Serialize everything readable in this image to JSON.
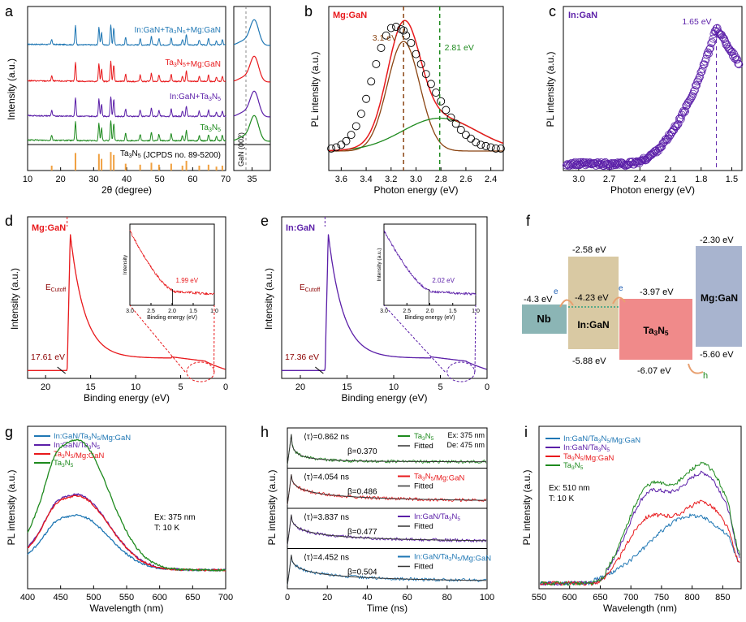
{
  "colors": {
    "blue": "#1f77b4",
    "red": "#e8191c",
    "purple": "#5b1fa8",
    "green": "#1e8a1e",
    "brown": "#8b4513",
    "orange": "#f0a040",
    "darkred": "#8b0000",
    "nb": "#8bb5b5",
    "ingan": "#d9c9a3",
    "ta3n5": "#f08a8a",
    "mggan": "#a8b4cf",
    "arrow": "#e8a070"
  },
  "panel_letters": [
    "a",
    "b",
    "c",
    "d",
    "e",
    "f",
    "g",
    "h",
    "i"
  ],
  "chart_data": [
    {
      "panel": "a",
      "type": "line",
      "xlabel": "2θ (degree)",
      "ylabel": "Intensity (a.u.)",
      "xlim": [
        10,
        70
      ],
      "xticks": [
        10,
        20,
        30,
        40,
        50,
        60,
        70
      ],
      "series": [
        {
          "name": "In:GaN+Ta3N5+Mg:GaN",
          "color": "blue"
        },
        {
          "name": "Ta3N5+Mg:GaN",
          "color": "red"
        },
        {
          "name": "In:GaN+Ta3N5",
          "color": "purple"
        },
        {
          "name": "Ta3N5",
          "color": "green"
        }
      ],
      "reference": {
        "name": "Ta3N5 (JCPDS no. 89-5200)",
        "peaks": [
          17.3,
          24.5,
          31.6,
          32.4,
          35.2,
          36.1,
          39.7,
          44.1,
          47.5,
          49.8,
          53.5,
          56.9,
          58.1,
          62.0,
          64.8,
          67.2,
          69.0
        ],
        "heights": [
          0.25,
          0.9,
          0.85,
          0.6,
          0.95,
          0.8,
          0.35,
          0.3,
          0.4,
          0.3,
          0.35,
          0.25,
          0.5,
          0.25,
          0.3,
          0.2,
          0.25
        ]
      }
    },
    {
      "panel": "a-inset",
      "type": "line",
      "xticks": [
        35
      ],
      "xlim": [
        33.5,
        36.5
      ],
      "annotation": "GaN (002)",
      "marker_x": 34.5
    },
    {
      "panel": "b",
      "type": "scatter",
      "title": "Mg:GaN",
      "xlabel": "Photon energy (eV)",
      "ylabel": "PL intensity (a.u.)",
      "xlim": [
        3.7,
        2.3
      ],
      "xticks": [
        3.6,
        3.4,
        3.2,
        3.0,
        2.8,
        2.6,
        2.4
      ],
      "peaks": [
        {
          "label": "3.1 eV",
          "x": 3.1,
          "color": "brown"
        },
        {
          "label": "2.81 eV",
          "x": 2.81,
          "color": "green"
        }
      ],
      "series": [
        {
          "name": "data",
          "x": [
            3.68,
            3.64,
            3.6,
            3.56,
            3.52,
            3.48,
            3.44,
            3.4,
            3.36,
            3.32,
            3.28,
            3.24,
            3.2,
            3.16,
            3.12,
            3.1,
            3.08,
            3.04,
            3.0,
            2.96,
            2.92,
            2.88,
            2.84,
            2.8,
            2.76,
            2.72,
            2.68,
            2.64,
            2.6,
            2.56,
            2.52,
            2.48,
            2.44,
            2.4,
            2.36,
            2.32
          ],
          "y": [
            0.02,
            0.03,
            0.05,
            0.08,
            0.13,
            0.2,
            0.3,
            0.42,
            0.56,
            0.7,
            0.83,
            0.93,
            0.99,
            1.0,
            0.98,
            0.97,
            0.93,
            0.87,
            0.78,
            0.7,
            0.62,
            0.54,
            0.47,
            0.4,
            0.33,
            0.27,
            0.22,
            0.17,
            0.13,
            0.1,
            0.07,
            0.05,
            0.04,
            0.03,
            0.02,
            0.02
          ]
        }
      ]
    },
    {
      "panel": "c",
      "type": "scatter",
      "title": "In:GaN",
      "xlabel": "Photon energy (eV)",
      "ylabel": "PL intensity (a.u.)",
      "xlim": [
        3.15,
        1.4
      ],
      "xticks": [
        3.0,
        2.7,
        2.4,
        2.1,
        1.8,
        1.5
      ],
      "peaks": [
        {
          "label": "1.65 eV",
          "x": 1.65,
          "color": "purple"
        }
      ]
    },
    {
      "panel": "d",
      "type": "line",
      "title": "Mg:GaN",
      "xlabel": "Binding energy (eV)",
      "ylabel": "Intensity (a.u.)",
      "xlim": [
        22,
        0
      ],
      "xticks": [
        20,
        15,
        10,
        5,
        0
      ],
      "cutoff_label": "E",
      "cutoff_sub": "Cutoff",
      "cutoff_value": "17.61 eV",
      "cutoff_x": 17.61,
      "inset": {
        "ylabel": "Intensity",
        "xlabel": "Binding energy (eV)",
        "xlim": [
          3.0,
          1.0
        ],
        "xticks": [
          "3.0",
          "2.5",
          "2.0",
          "1.5",
          "1.0"
        ],
        "value": "1.99 eV",
        "value_x": 1.99
      }
    },
    {
      "panel": "e",
      "type": "line",
      "title": "In:GaN",
      "xlabel": "Binding energy (eV)",
      "ylabel": "Intensity (a.u.)",
      "xlim": [
        22,
        0
      ],
      "xticks": [
        20,
        15,
        10,
        5,
        0
      ],
      "cutoff_label": "E",
      "cutoff_sub": "Cutoff",
      "cutoff_value": "17.36 eV",
      "cutoff_x": 17.36,
      "inset": {
        "ylabel": "Intensity (a.u.)",
        "xlabel": "Binding energy (eV)",
        "xlim": [
          3.0,
          1.0
        ],
        "xticks": [
          "3.0",
          "2.5",
          "2.0",
          "1.5",
          "1.0"
        ],
        "value": "2.02 eV",
        "value_x": 2.02
      }
    },
    {
      "panel": "f",
      "type": "diagram",
      "blocks": [
        {
          "name": "Nb",
          "level": "-4.3 eV"
        },
        {
          "name": "In:GaN",
          "top": "-2.58 eV",
          "fermi": "-4.23 eV",
          "bottom": "-5.88 eV"
        },
        {
          "name": "Ta3N5",
          "top": "-3.97 eV",
          "bottom": "-6.07 eV"
        },
        {
          "name": "Mg:GaN",
          "top": "-2.30 eV",
          "bottom": "-5.60 eV"
        }
      ],
      "electron": "e",
      "hole": "h"
    },
    {
      "panel": "g",
      "type": "line",
      "xlabel": "Wavelength (nm)",
      "ylabel": "PL intensity (a.u.)",
      "xlim": [
        400,
        700
      ],
      "xticks": [
        400,
        450,
        500,
        550,
        600,
        650,
        700
      ],
      "conditions": [
        "Ex: 375 nm",
        "T: 10 K"
      ],
      "series": [
        {
          "name": "In:GaN/Ta3N5/Mg:GaN",
          "color": "blue",
          "peak": 0.42
        },
        {
          "name": "In:GaN/Ta3N5",
          "color": "purple",
          "peak": 0.58
        },
        {
          "name": "Ta3N5/Mg:GaN",
          "color": "red",
          "peak": 0.57
        },
        {
          "name": "Ta3N5",
          "color": "green",
          "peak": 1.0
        }
      ]
    },
    {
      "panel": "h",
      "type": "line",
      "xlabel": "Time (ns)",
      "ylabel": "PL intensity (a.u.)",
      "xlim": [
        0,
        100
      ],
      "xticks": [
        0,
        20,
        40,
        60,
        80,
        100
      ],
      "conditions": [
        "Ex: 375 nm",
        "De: 475 nm"
      ],
      "subplots": [
        {
          "name": "Ta3N5",
          "tau": "⟨τ⟩=0.862 ns",
          "beta": "β=0.370",
          "color": "green"
        },
        {
          "name": "Ta3N5/Mg:GaN",
          "tau": "⟨τ⟩=4.054 ns",
          "beta": "β=0.486",
          "color": "red"
        },
        {
          "name": "In:GaN/Ta3N5",
          "tau": "⟨τ⟩=3.837 ns",
          "beta": "β=0.477",
          "color": "purple"
        },
        {
          "name": "In:GaN/Ta3N5/Mg:GaN",
          "tau": "⟨τ⟩=4.452 ns",
          "beta": "β=0.504",
          "color": "blue"
        }
      ],
      "fitted_label": "Fitted"
    },
    {
      "panel": "i",
      "type": "line",
      "xlabel": "Wavelength (nm)",
      "ylabel": "PL intensity (a.u.)",
      "xlim": [
        550,
        880
      ],
      "xticks": [
        550,
        600,
        650,
        700,
        750,
        800,
        850
      ],
      "conditions": [
        "Ex: 510 nm",
        "T: 10 K"
      ],
      "series": [
        {
          "name": "In:GaN/Ta3N5/Mg:GaN",
          "color": "blue",
          "peak": 0.5
        },
        {
          "name": "In:GaN/Ta3N5",
          "color": "purple",
          "peak": 0.88
        },
        {
          "name": "Ta3N5/Mg:GaN",
          "color": "red",
          "peak": 0.65
        },
        {
          "name": "Ta3N5",
          "color": "green",
          "peak": 0.95
        }
      ]
    }
  ]
}
